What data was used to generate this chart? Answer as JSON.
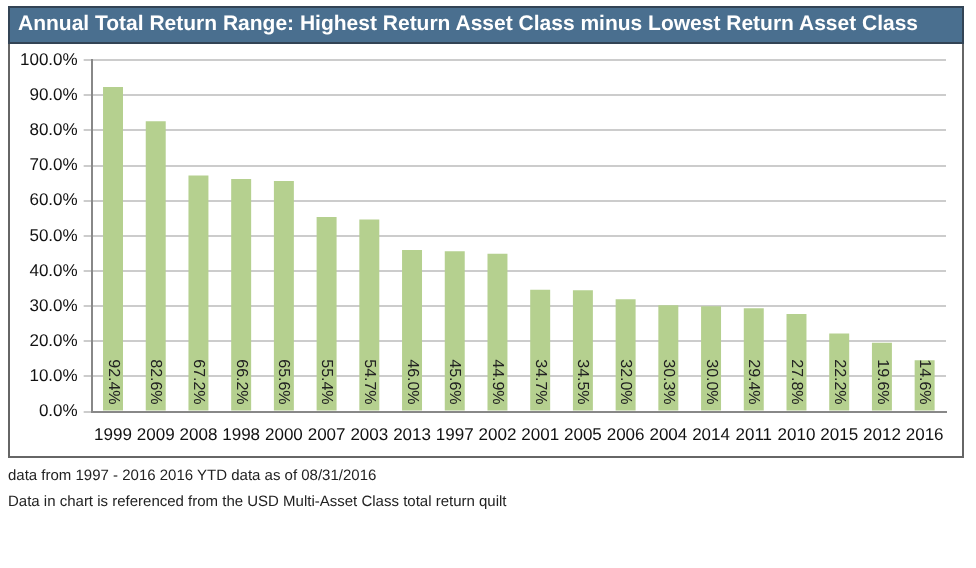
{
  "chart_data": {
    "type": "bar",
    "title": "Annual Total Return Range: Highest Return Asset Class minus Lowest Return Asset Class",
    "categories": [
      "1999",
      "2009",
      "2008",
      "1998",
      "2000",
      "2007",
      "2003",
      "2013",
      "1997",
      "2002",
      "2001",
      "2005",
      "2006",
      "2004",
      "2014",
      "2011",
      "2010",
      "2015",
      "2012",
      "2016"
    ],
    "values": [
      92.4,
      82.6,
      67.2,
      66.2,
      65.6,
      55.4,
      54.7,
      46.0,
      45.6,
      44.9,
      34.7,
      34.5,
      32.0,
      30.3,
      30.0,
      29.4,
      27.8,
      22.2,
      19.6,
      14.6
    ],
    "value_labels": [
      "92.4%",
      "82.6%",
      "67.2%",
      "66.2%",
      "65.6%",
      "55.4%",
      "54.7%",
      "46.0%",
      "45.6%",
      "44.9%",
      "34.7%",
      "34.5%",
      "32.0%",
      "30.3%",
      "30.0%",
      "29.4%",
      "27.8%",
      "22.2%",
      "19.6%",
      "14.6%"
    ],
    "color": "#b5d08f",
    "ylim": [
      0,
      100
    ],
    "yticks": [
      {
        "value": 0,
        "label": "0.0%"
      },
      {
        "value": 10,
        "label": "10.0%"
      },
      {
        "value": 20,
        "label": "20.0%"
      },
      {
        "value": 30,
        "label": "30.0%"
      },
      {
        "value": 40,
        "label": "40.0%"
      },
      {
        "value": 50,
        "label": "50.0%"
      },
      {
        "value": 60,
        "label": "60.0%"
      },
      {
        "value": 70,
        "label": "70.0%"
      },
      {
        "value": 80,
        "label": "80.0%"
      },
      {
        "value": 90,
        "label": "90.0%"
      },
      {
        "value": 100,
        "label": "100.0%"
      }
    ],
    "grid": "y",
    "annotations": [
      "data from 1997 - 2016   2016 YTD data as of  08/31/2016",
      "Data in chart is referenced from the USD Multi-Asset Class total return quilt"
    ]
  }
}
